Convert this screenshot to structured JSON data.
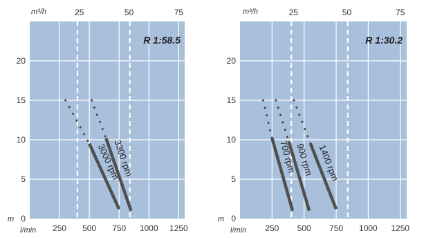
{
  "chart_data": [
    {
      "type": "line",
      "annotation": "R 1:58.5",
      "x_top_unit": "m³/h",
      "x_top_ticks": [
        "25",
        "50",
        "75"
      ],
      "x_bottom_unit": "l/min",
      "x_bottom_ticks": [
        "250",
        "500",
        "750",
        "1000",
        "1250"
      ],
      "y_unit": "m",
      "y_ticks": [
        "0",
        "5",
        "10",
        "15",
        "20"
      ],
      "xlim": [
        0,
        1300
      ],
      "ylim": [
        0,
        25
      ],
      "dashed_x": [
        400,
        840
      ],
      "series": [
        {
          "name": "3000 rpm",
          "dotted": [
            [
              300,
              15
            ],
            [
              500,
              9.5
            ]
          ],
          "solid": [
            [
              500,
              9.5
            ],
            [
              750,
              1.2
            ]
          ]
        },
        {
          "name": "3300 rpm",
          "dotted": [
            [
              520,
              15
            ],
            [
              640,
              10.2
            ]
          ],
          "solid": [
            [
              640,
              10.2
            ],
            [
              850,
              1
            ]
          ]
        }
      ]
    },
    {
      "type": "line",
      "annotation": "R 1:30.2",
      "x_top_unit": "m³/h",
      "x_top_ticks": [
        "25",
        "50",
        "75"
      ],
      "x_bottom_unit": "l/min",
      "x_bottom_ticks": [
        "250",
        "500",
        "750",
        "1000",
        "1250"
      ],
      "y_unit": "m",
      "y_ticks": [
        "0",
        "5",
        "10",
        "15",
        "20"
      ],
      "xlim": [
        0,
        1300
      ],
      "ylim": [
        0,
        25
      ],
      "dashed_x": [
        400,
        840
      ],
      "series": [
        {
          "name": "700 rpm",
          "dotted": [
            [
              180,
              15
            ],
            [
              250,
              10.2
            ]
          ],
          "solid": [
            [
              250,
              10.2
            ],
            [
              410,
              1
            ]
          ]
        },
        {
          "name": "900 rpm",
          "dotted": [
            [
              280,
              15
            ],
            [
              380,
              9.8
            ]
          ],
          "solid": [
            [
              380,
              9.8
            ],
            [
              540,
              1
            ]
          ]
        },
        {
          "name": "1400 rpm",
          "dotted": [
            [
              420,
              15
            ],
            [
              550,
              9.5
            ]
          ],
          "solid": [
            [
              550,
              9.5
            ],
            [
              750,
              1.2
            ]
          ]
        }
      ]
    }
  ]
}
